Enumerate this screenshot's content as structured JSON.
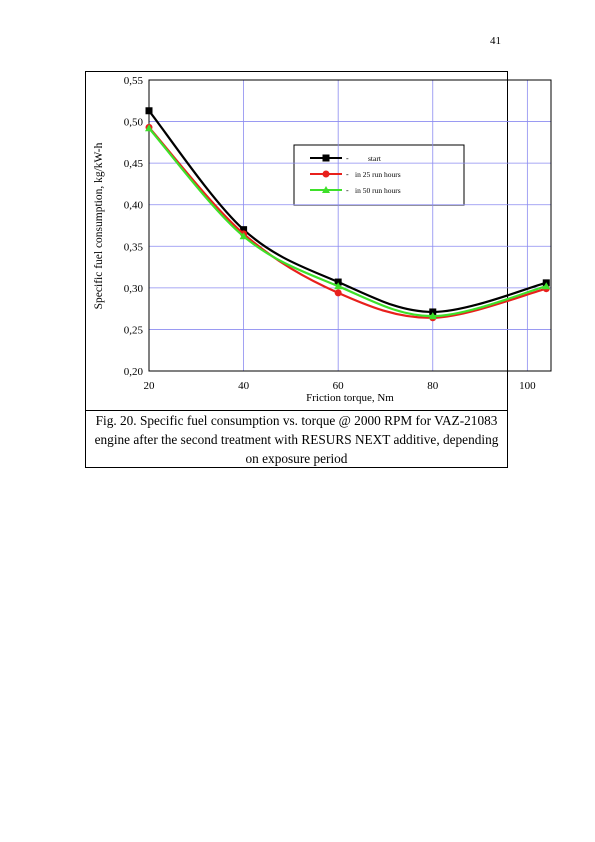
{
  "page_number": "41",
  "chart_data": {
    "type": "line",
    "x_label": "Friction torque, Nm",
    "y_label": "Specific fuel consumption, kg/kW-h",
    "x": [
      20,
      40,
      60,
      80,
      104
    ],
    "series": [
      {
        "name": "start",
        "color": "#000000",
        "marker": "square",
        "values": [
          0.513,
          0.37,
          0.307,
          0.271,
          0.306
        ]
      },
      {
        "name": "in 25 run hours",
        "color": "#e8201c",
        "marker": "circle",
        "values": [
          0.493,
          0.365,
          0.294,
          0.264,
          0.299
        ]
      },
      {
        "name": "in 50 run hours",
        "color": "#3ee02a",
        "marker": "triangle",
        "values": [
          0.492,
          0.362,
          0.302,
          0.266,
          0.302
        ]
      }
    ],
    "xlim": [
      20,
      105
    ],
    "ylim": [
      0.2,
      0.55
    ],
    "xticks": [
      20,
      40,
      60,
      80,
      100
    ],
    "yticks": [
      {
        "value": 0.2,
        "label": "0,20"
      },
      {
        "value": 0.25,
        "label": "0,25"
      },
      {
        "value": 0.3,
        "label": "0,30"
      },
      {
        "value": 0.35,
        "label": "0,35"
      },
      {
        "value": 0.4,
        "label": "0,40"
      },
      {
        "value": 0.45,
        "label": "0,45"
      },
      {
        "value": 0.5,
        "label": "0,50"
      },
      {
        "value": 0.55,
        "label": "0,55"
      }
    ],
    "grid": true
  },
  "caption": "Fig. 20. Specific fuel consumption vs. torque @ 2000 RPM for VAZ-21083 engine after the second treatment with RESURS NEXT additive, depending on exposure period"
}
